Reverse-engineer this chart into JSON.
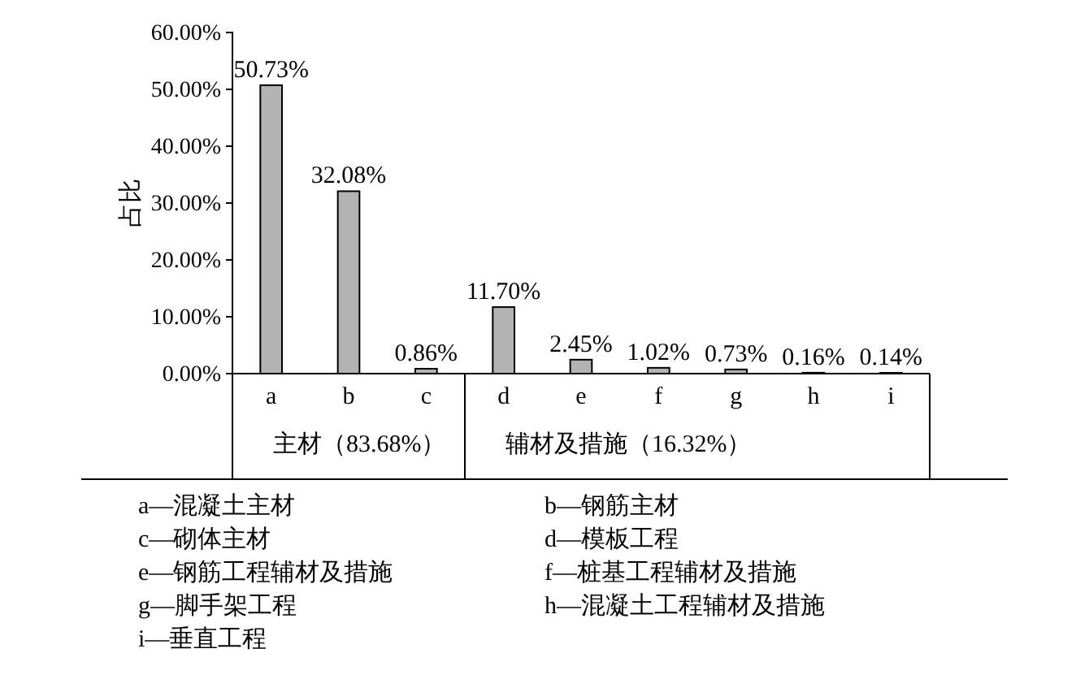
{
  "chart_data": {
    "type": "bar",
    "ylabel": "占比",
    "categories": [
      "a",
      "b",
      "c",
      "d",
      "e",
      "f",
      "g",
      "h",
      "i"
    ],
    "values": [
      50.73,
      32.08,
      0.86,
      11.7,
      2.45,
      1.02,
      0.73,
      0.16,
      0.14
    ],
    "value_labels": [
      "50.73%",
      "32.08%",
      "0.86%",
      "11.70%",
      "2.45%",
      "1.02%",
      "0.73%",
      "0.16%",
      "0.14%"
    ],
    "color": "#b3b3b3",
    "ylim": [
      0,
      60
    ],
    "yticks": [
      {
        "value": 0,
        "label": "0.00%"
      },
      {
        "value": 10,
        "label": "10.00%"
      },
      {
        "value": 20,
        "label": "20.00%"
      },
      {
        "value": 30,
        "label": "30.00%"
      },
      {
        "value": 40,
        "label": "40.00%"
      },
      {
        "value": 50,
        "label": "50.00%"
      },
      {
        "value": 60,
        "label": "60.00%"
      }
    ],
    "grid": false,
    "annotations": [
      "主材（83.68%）",
      "辅材及措施（16.32%）",
      "a—混凝土主材",
      "b—钢筋主材",
      "c—砌体主材",
      "d—模板工程",
      "e—钢筋工程辅材及措施",
      "f—桩基工程辅材及措施",
      "g—脚手架工程",
      "h—混凝土工程辅材及措施",
      "i—垂直工程"
    ]
  }
}
